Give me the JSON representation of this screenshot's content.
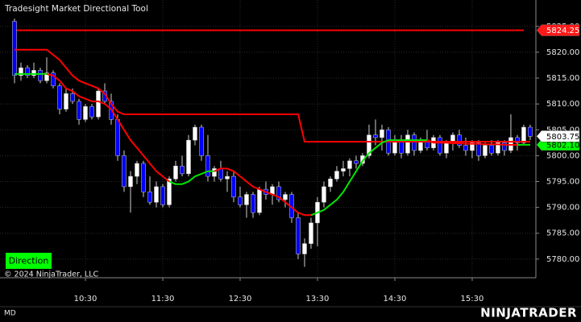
{
  "chart_data": {
    "type": "candlestick",
    "title": "Tradesight Market Directional Tool",
    "x": [
      575,
      580,
      585,
      590,
      595,
      600,
      605,
      610,
      615,
      620,
      625,
      630,
      635,
      640,
      645,
      650,
      655,
      660,
      665,
      670,
      675,
      680,
      685,
      690,
      695,
      700,
      705,
      710,
      715,
      720,
      725,
      730,
      735,
      740,
      745,
      750,
      755,
      760,
      765,
      770,
      775,
      780,
      785,
      790,
      795,
      800,
      805,
      810,
      815,
      820,
      825,
      830,
      835,
      840,
      845,
      850,
      855,
      860,
      865,
      870,
      875,
      880,
      885,
      890,
      895,
      900,
      905,
      910,
      915,
      920,
      925,
      930,
      935,
      940,
      945,
      950,
      955,
      960,
      965,
      970,
      975
    ],
    "open": [
      5826,
      5815.5,
      5817,
      5815.5,
      5816.5,
      5814.5,
      5816,
      5813.5,
      5809,
      5812,
      5810.5,
      5807,
      5809.5,
      5807.5,
      5812.5,
      5810.5,
      5807,
      5800,
      5794,
      5796,
      5798.5,
      5793,
      5791,
      5794,
      5790.5,
      5795.5,
      5798,
      5796.5,
      5803,
      5805.5,
      5800,
      5796,
      5797.5,
      5795.5,
      5796,
      5792,
      5790.5,
      5792.5,
      5789,
      5793.5,
      5792.5,
      5794,
      5791.5,
      5792.5,
      5788,
      5781,
      5783,
      5787,
      5791,
      5794,
      5795.5,
      5797,
      5797.5,
      5799,
      5798.5,
      5800,
      5804,
      5803.5,
      5805,
      5800.5,
      5803,
      5800.5,
      5804,
      5801,
      5803,
      5801.5,
      5803.5,
      5800.5,
      5802.5,
      5804,
      5802,
      5801,
      5802.5,
      5800,
      5802,
      5800.5,
      5802.5,
      5801,
      5803.5,
      5802.5,
      5805.5
    ],
    "high": [
      5826.5,
      5818,
      5817.5,
      5818,
      5817,
      5819,
      5816.5,
      5814,
      5813,
      5813,
      5811,
      5810,
      5810,
      5813,
      5814,
      5812,
      5808,
      5801,
      5797,
      5799,
      5799,
      5796,
      5795,
      5794.5,
      5796,
      5799,
      5800,
      5804,
      5806,
      5806,
      5804,
      5798,
      5799,
      5797,
      5797,
      5794,
      5793,
      5793,
      5794,
      5795,
      5794.5,
      5795,
      5793,
      5793,
      5789,
      5784,
      5788,
      5792,
      5795,
      5796,
      5798,
      5799,
      5799.5,
      5800,
      5800.5,
      5806,
      5807,
      5806,
      5805.5,
      5804,
      5804,
      5805,
      5804.5,
      5803.5,
      5805,
      5804,
      5804,
      5803,
      5804.5,
      5805,
      5803.5,
      5803,
      5803,
      5802.5,
      5803,
      5803,
      5803,
      5808,
      5804,
      5806,
      5806
    ],
    "low": [
      5814,
      5814.5,
      5815,
      5815,
      5814,
      5814,
      5813,
      5808,
      5808.5,
      5810,
      5806,
      5806.5,
      5807,
      5807,
      5810,
      5806,
      5799,
      5793,
      5789,
      5794.5,
      5792,
      5790.5,
      5790,
      5790,
      5790,
      5795,
      5796,
      5796,
      5802,
      5799,
      5795,
      5795,
      5795,
      5793,
      5791,
      5790,
      5788,
      5788,
      5788.5,
      5791.5,
      5790.5,
      5791,
      5790,
      5787,
      5780,
      5778.5,
      5782,
      5782.5,
      5790,
      5793,
      5795,
      5796,
      5796,
      5797.5,
      5798,
      5799.5,
      5802,
      5801,
      5800,
      5800,
      5799.5,
      5800,
      5800,
      5800.5,
      5801,
      5801,
      5800,
      5799.5,
      5801,
      5801.5,
      5800,
      5799.5,
      5799,
      5799.5,
      5800,
      5800,
      5800,
      5800.5,
      5801,
      5802,
      5803
    ],
    "close": [
      5815.5,
      5817,
      5815.5,
      5816.5,
      5814.5,
      5816,
      5813.5,
      5809,
      5812,
      5810.5,
      5807,
      5809.5,
      5807.5,
      5812.5,
      5810.5,
      5807,
      5800,
      5794,
      5796,
      5798.5,
      5793,
      5791,
      5794,
      5790.5,
      5795.5,
      5798,
      5796.5,
      5803,
      5805.5,
      5800,
      5796,
      5797.5,
      5795.5,
      5796,
      5792,
      5790.5,
      5792.5,
      5789,
      5793.5,
      5792.5,
      5794,
      5791.5,
      5792.5,
      5788,
      5781,
      5783,
      5787,
      5791,
      5794,
      5795.5,
      5797,
      5797.5,
      5799,
      5798.5,
      5800,
      5804,
      5803.5,
      5805,
      5800.5,
      5803,
      5800.5,
      5804,
      5801,
      5803,
      5801.5,
      5803.5,
      5800.5,
      5802.5,
      5804,
      5802,
      5801,
      5802.5,
      5800,
      5802,
      5800.5,
      5802.5,
      5801,
      5803.5,
      5802.5,
      5805.5,
      5803.75
    ],
    "up_color": "#ffffff",
    "down_color": "#0000ff",
    "wick_color": "#cfcfcf",
    "lines": [
      {
        "color": "#ff0000",
        "values": [
          5820.5,
          5820.5,
          5820.5,
          5820.5,
          5820.5,
          5820.5,
          5819.5,
          5818.5,
          5817,
          5815.5,
          5814.5,
          5814,
          5813.5,
          5813,
          5812,
          5810,
          5808.5,
          5808,
          5808,
          5808,
          5808,
          5808,
          5808,
          5808,
          5808,
          5808,
          5808,
          5808,
          5808,
          5808,
          5808,
          5808,
          5808,
          5808,
          5808,
          5808,
          5808,
          5808,
          5808,
          5808,
          5808,
          5808,
          5808,
          5808,
          5808,
          5802.7,
          5802.7,
          5802.7,
          5802.7,
          5802.7,
          5802.7,
          5802.7,
          5802.7,
          5802.7,
          5802.7,
          5802.7,
          5802.7,
          5802.7,
          5802.7,
          5802.7,
          5802.7,
          5802.7,
          5802.7,
          5802.7,
          5802.7,
          5802.7,
          5802.7,
          5802.7,
          5802.7,
          5802.7,
          5802.7,
          5802.7,
          5802.7,
          5802.7,
          5802.7,
          5802.7,
          5802.7,
          5802.7,
          5802.7,
          5802.7,
          5802.7
        ]
      },
      {
        "color": "#00e600",
        "values": [
          5815.8,
          5815.8,
          5815.8,
          5815.8,
          5815.8,
          5815.8,
          null,
          null,
          null,
          null,
          null,
          null,
          null,
          null,
          null,
          null,
          null,
          null,
          null,
          null,
          null,
          null,
          null,
          null,
          5795,
          5794.5,
          5794.5,
          5795,
          5796,
          5796.5,
          5797,
          5797,
          null,
          null,
          null,
          null,
          null,
          null,
          null,
          null,
          null,
          null,
          null,
          null,
          null,
          null,
          5788.5,
          5789,
          5789.5,
          5790.5,
          5791.5,
          5793,
          5795,
          5797,
          5799,
          5800.5,
          5801.5,
          5802.5,
          5803,
          5803,
          5803,
          5803,
          5803,
          5803,
          5803,
          null,
          null,
          null,
          null,
          null,
          null,
          null,
          null,
          null,
          null,
          null,
          null,
          null,
          5802.1,
          5802.1,
          5802.1
        ]
      },
      {
        "color": "#ff0000",
        "values": [
          null,
          null,
          null,
          null,
          null,
          5815.8,
          5815.5,
          5814.5,
          5813,
          5812.5,
          5811.5,
          5811,
          5810.5,
          5810.5,
          5810,
          5809,
          5807,
          5805,
          5803,
          5801.5,
          5800,
          5798.5,
          5797,
          5796,
          5795,
          null,
          null,
          null,
          null,
          null,
          null,
          5797,
          5797.5,
          5797.5,
          5797,
          5796,
          5795,
          5794,
          5793.5,
          5793,
          5792.5,
          5792,
          5791,
          5790,
          5789,
          5788.5,
          5788.5,
          null,
          null,
          null,
          null,
          null,
          null,
          null,
          null,
          null,
          null,
          null,
          null,
          null,
          null,
          null,
          null,
          null,
          5803,
          5802.5,
          5802.5,
          5802.5,
          5802.4,
          5802.4,
          5802.3,
          5802.3,
          5802.3,
          5802.2,
          5802.2,
          5802.2,
          5802.1,
          5802.1,
          5802.1,
          null,
          null
        ]
      }
    ],
    "level": {
      "value": 5824.25,
      "color": "#ff0000"
    },
    "price_tags": [
      {
        "value": 5824.25,
        "label": "5824.25",
        "fill": "#ff1a1a",
        "text_color": "#ffffff"
      },
      {
        "value": 5802.1,
        "label": "5802.10",
        "fill": "#00ff00",
        "text_color": "#000000"
      },
      {
        "value": 5803.75,
        "label": "5803.75",
        "fill": "#ffffff",
        "text_color": "#000000"
      }
    ],
    "xlim": [
      563.75,
      979.4
    ],
    "ylim": [
      5776.4,
      5830.1
    ],
    "xticks": [
      {
        "value": 630,
        "label": "10:30"
      },
      {
        "value": 690,
        "label": "11:30"
      },
      {
        "value": 750,
        "label": "12:30"
      },
      {
        "value": 810,
        "label": "13:30"
      },
      {
        "value": 870,
        "label": "14:30"
      },
      {
        "value": 930,
        "label": "15:30"
      }
    ],
    "yticks": [
      {
        "value": 5780,
        "label": "5780.00"
      },
      {
        "value": 5785,
        "label": "5785.00"
      },
      {
        "value": 5790,
        "label": "5790.00"
      },
      {
        "value": 5795,
        "label": "5795.00"
      },
      {
        "value": 5800,
        "label": "5800.00"
      },
      {
        "value": 5805,
        "label": "5805.00"
      },
      {
        "value": 5810,
        "label": "5810.00"
      },
      {
        "value": 5815,
        "label": "5815.00"
      },
      {
        "value": 5820,
        "label": "5820.00"
      },
      {
        "value": 5825,
        "label": "5825.00"
      }
    ],
    "grid": true
  },
  "panel": {
    "indicator_button": "Direction",
    "copyright": "© 2024 NinjaTrader, LLC",
    "instrument": "MD",
    "logo": "NINJATRADER"
  }
}
